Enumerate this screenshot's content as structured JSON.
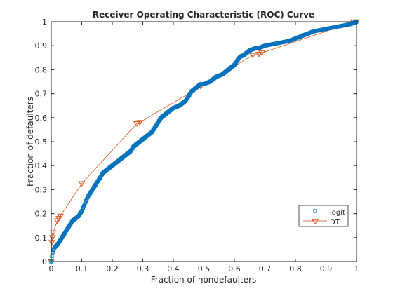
{
  "chart_data": {
    "type": "line",
    "title": "Receiver Operating Characteristic (ROC) Curve",
    "xlabel": "Fraction of nondefaulters",
    "ylabel": "Fraction of defaulters",
    "xlim": [
      0,
      1
    ],
    "ylim": [
      0,
      1
    ],
    "xticks": [
      "0",
      "0.1",
      "0.2",
      "0.3",
      "0.4",
      "0.5",
      "0.6",
      "0.7",
      "0.8",
      "0.9",
      "1"
    ],
    "yticks": [
      "0",
      "0.1",
      "0.2",
      "0.3",
      "0.4",
      "0.5",
      "0.6",
      "0.7",
      "0.8",
      "0.9",
      "1"
    ],
    "grid": false,
    "legend_position": "lower-right",
    "series": [
      {
        "name": "logit",
        "color": "#0072BD",
        "marker": "square",
        "x": [
          0,
          0.002,
          0.005,
          0.008,
          0.012,
          0.02,
          0.03,
          0.04,
          0.05,
          0.06,
          0.07,
          0.08,
          0.09,
          0.1,
          0.11,
          0.12,
          0.13,
          0.14,
          0.15,
          0.16,
          0.17,
          0.18,
          0.19,
          0.2,
          0.21,
          0.22,
          0.23,
          0.24,
          0.25,
          0.26,
          0.27,
          0.28,
          0.29,
          0.3,
          0.31,
          0.32,
          0.33,
          0.34,
          0.35,
          0.36,
          0.37,
          0.38,
          0.39,
          0.4,
          0.41,
          0.42,
          0.43,
          0.44,
          0.45,
          0.46,
          0.47,
          0.48,
          0.49,
          0.5,
          0.51,
          0.52,
          0.53,
          0.54,
          0.55,
          0.56,
          0.57,
          0.58,
          0.59,
          0.6,
          0.61,
          0.62,
          0.63,
          0.64,
          0.65,
          0.66,
          0.67,
          0.68,
          0.69,
          0.7,
          0.72,
          0.74,
          0.76,
          0.78,
          0.8,
          0.82,
          0.84,
          0.86,
          0.88,
          0.9,
          0.92,
          0.94,
          0.96,
          0.98,
          1
        ],
        "y": [
          0,
          0.02,
          0.04,
          0.05,
          0.06,
          0.07,
          0.09,
          0.11,
          0.13,
          0.15,
          0.17,
          0.18,
          0.19,
          0.21,
          0.24,
          0.27,
          0.29,
          0.31,
          0.33,
          0.35,
          0.37,
          0.38,
          0.39,
          0.4,
          0.41,
          0.42,
          0.43,
          0.44,
          0.45,
          0.46,
          0.48,
          0.49,
          0.5,
          0.51,
          0.52,
          0.53,
          0.54,
          0.56,
          0.58,
          0.6,
          0.61,
          0.62,
          0.63,
          0.64,
          0.645,
          0.65,
          0.66,
          0.67,
          0.69,
          0.71,
          0.72,
          0.73,
          0.74,
          0.74,
          0.745,
          0.75,
          0.76,
          0.77,
          0.775,
          0.78,
          0.79,
          0.8,
          0.81,
          0.82,
          0.84,
          0.855,
          0.86,
          0.87,
          0.88,
          0.885,
          0.89,
          0.89,
          0.895,
          0.9,
          0.905,
          0.91,
          0.915,
          0.92,
          0.93,
          0.94,
          0.95,
          0.96,
          0.965,
          0.97,
          0.975,
          0.98,
          0.985,
          0.99,
          1
        ]
      },
      {
        "name": "DT",
        "color": "#D95319",
        "marker": "triangle-down",
        "x": [
          0,
          0.002,
          0.004,
          0.006,
          0.02,
          0.025,
          0.03,
          0.1,
          0.28,
          0.29,
          0.49,
          0.66,
          0.68,
          0.69,
          0.97,
          0.99,
          1
        ],
        "y": [
          0,
          0.08,
          0.1,
          0.12,
          0.17,
          0.18,
          0.19,
          0.325,
          0.575,
          0.58,
          0.73,
          0.86,
          0.865,
          0.87,
          0.99,
          1,
          1
        ]
      }
    ]
  }
}
